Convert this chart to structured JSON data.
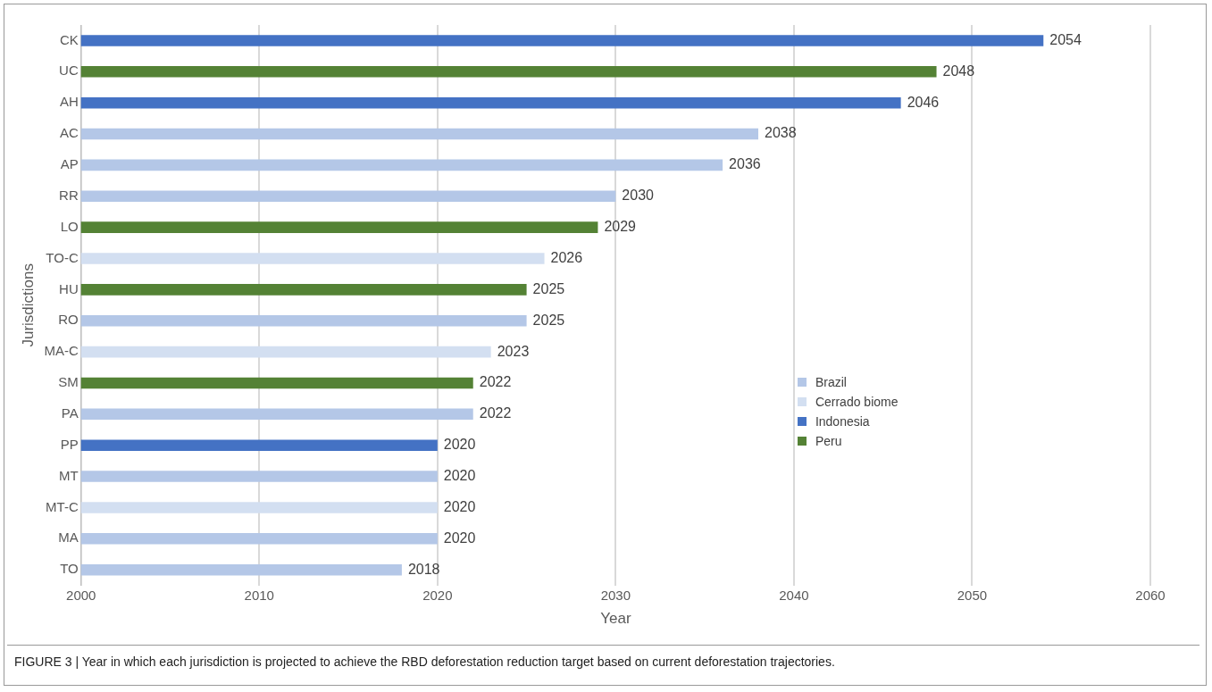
{
  "chart_data": {
    "type": "bar",
    "orientation": "horizontal",
    "stacked": true,
    "xlabel": "Year",
    "ylabel": "Jurisdictions",
    "categories": [
      "CK",
      "UC",
      "AH",
      "AC",
      "AP",
      "RR",
      "LO",
      "TO-C",
      "HU",
      "RO",
      "MA-C",
      "SM",
      "PA",
      "PP",
      "MT",
      "MT-C",
      "MA",
      "TO"
    ],
    "series": [
      {
        "name": "Brazil",
        "color": "#b4c7e7",
        "values": [
          null,
          null,
          null,
          2038,
          2036,
          2030,
          null,
          null,
          null,
          2025,
          null,
          null,
          2022,
          null,
          2020,
          null,
          2020,
          2018
        ]
      },
      {
        "name": "Cerrado biome",
        "color": "#d3dff1",
        "values": [
          null,
          null,
          null,
          null,
          null,
          null,
          null,
          2026,
          null,
          null,
          2023,
          null,
          null,
          null,
          null,
          2020,
          null,
          null
        ]
      },
      {
        "name": "Indonesia",
        "color": "#4472c4",
        "values": [
          2054,
          null,
          2046,
          null,
          null,
          null,
          null,
          null,
          null,
          null,
          null,
          null,
          null,
          2020,
          null,
          null,
          null,
          null
        ]
      },
      {
        "name": "Peru",
        "color": "#548235",
        "values": [
          null,
          2048,
          null,
          null,
          null,
          null,
          2029,
          null,
          2025,
          null,
          null,
          2022,
          null,
          null,
          null,
          null,
          null,
          null
        ]
      }
    ],
    "xlim": [
      2000,
      2060
    ],
    "xticks": [
      2000,
      2010,
      2020,
      2030,
      2040,
      2050,
      2060
    ],
    "grid": "x",
    "legend": "right",
    "data_labels": true,
    "annotations": [
      "FIGURE 3 | Year in which each jurisdiction is projected to achieve the RBD deforestation reduction target based on current deforestation trajectories."
    ]
  }
}
